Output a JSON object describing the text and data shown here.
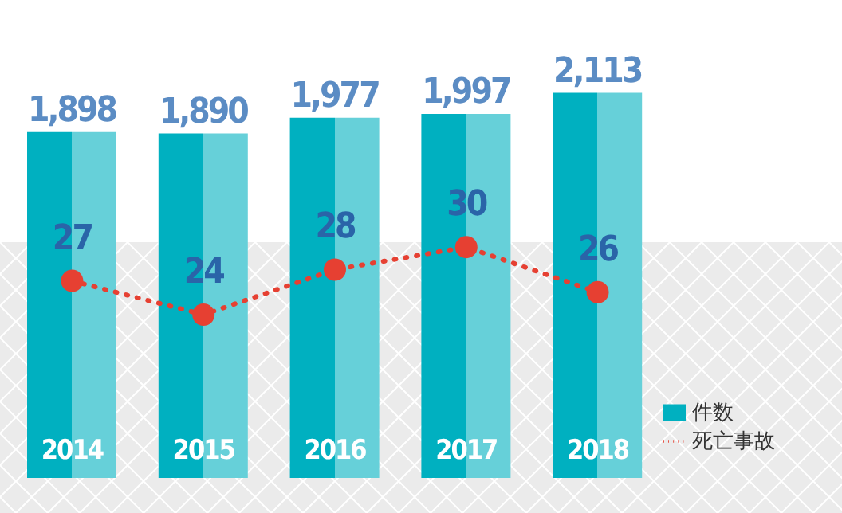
{
  "chart_data": {
    "type": "bar",
    "categories": [
      "2014",
      "2015",
      "2016",
      "2017",
      "2018"
    ],
    "series": [
      {
        "name": "件数",
        "color": "#00b0c0",
        "values": [
          1898,
          1890,
          1977,
          1997,
          2113
        ],
        "value_labels": [
          "1,898",
          "1,890",
          "1,977",
          "1,997",
          "2,113"
        ]
      },
      {
        "name": "死亡事故",
        "type": "line",
        "axis": "y2",
        "color": "#e64032",
        "values": [
          27,
          24,
          28,
          30,
          26
        ],
        "value_labels": [
          "27",
          "24",
          "28",
          "30",
          "26"
        ],
        "marker": "circle",
        "line_style": "dotted"
      }
    ],
    "tick_labels": "x",
    "legend": "bottom right"
  }
}
